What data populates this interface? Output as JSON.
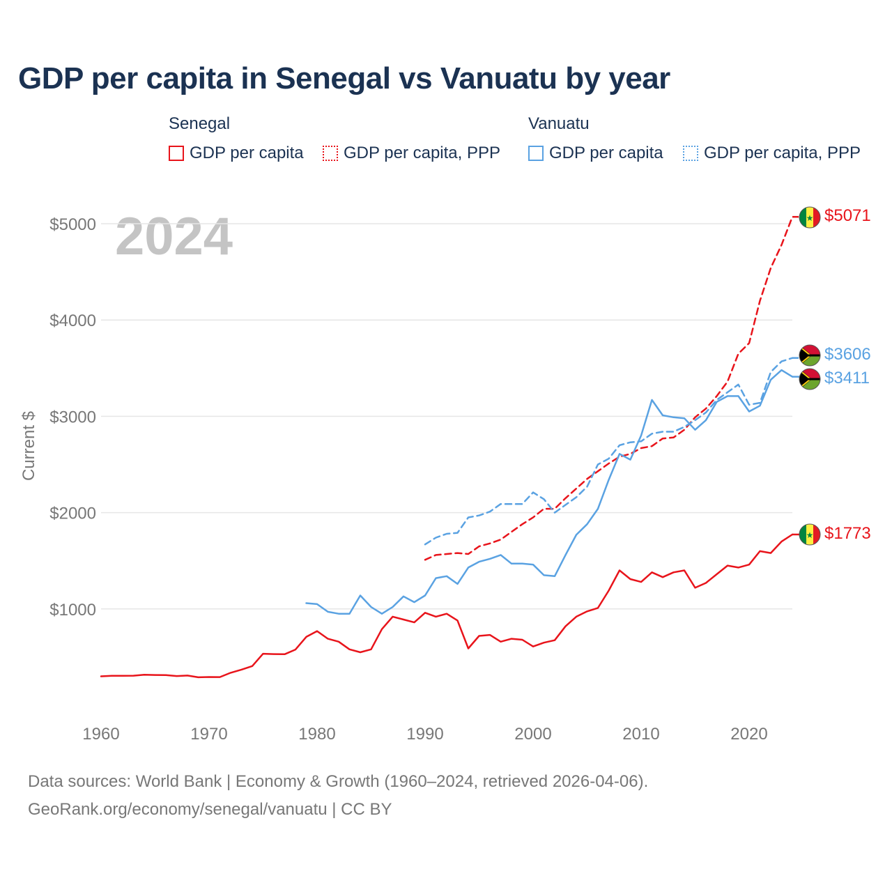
{
  "title": "GDP per capita in Senegal vs Vanuatu by year",
  "legend": {
    "senegal": {
      "name": "Senegal",
      "gdp": "GDP per capita",
      "ppp": "GDP per capita, PPP"
    },
    "vanuatu": {
      "name": "Vanuatu",
      "gdp": "GDP per capita",
      "ppp": "GDP per capita, PPP"
    }
  },
  "year_watermark": "2024",
  "footer": {
    "line1": "Data sources: World Bank | Economy & Growth (1960–2024, retrieved 2026-04-06).",
    "line2": "GeoRank.org/economy/senegal/vanuatu | CC BY"
  },
  "colors": {
    "senegal": "#e8141b",
    "vanuatu": "#5aa2e2",
    "grid": "#e6e6e6"
  },
  "chart_data": {
    "type": "line",
    "title": "GDP per capita in Senegal vs Vanuatu by year",
    "xlabel": "",
    "ylabel": "Current $",
    "xlim": [
      1960,
      2024
    ],
    "ylim": [
      0,
      5200
    ],
    "x_ticks": [
      1960,
      1970,
      1980,
      1990,
      2000,
      2010,
      2020
    ],
    "y_ticks": [
      {
        "value": 1000,
        "label": "$1000"
      },
      {
        "value": 2000,
        "label": "$2000"
      },
      {
        "value": 3000,
        "label": "$3000"
      },
      {
        "value": 4000,
        "label": "$4000"
      },
      {
        "value": 5000,
        "label": "$5000"
      }
    ],
    "series": [
      {
        "name": "Senegal GDP per capita",
        "country": "senegal",
        "style": "solid",
        "end_label": "$1773",
        "x": [
          1960,
          1961,
          1962,
          1963,
          1964,
          1965,
          1966,
          1967,
          1968,
          1969,
          1970,
          1971,
          1972,
          1973,
          1974,
          1975,
          1976,
          1977,
          1978,
          1979,
          1980,
          1981,
          1982,
          1983,
          1984,
          1985,
          1986,
          1987,
          1988,
          1989,
          1990,
          1991,
          1992,
          1993,
          1994,
          1995,
          1996,
          1997,
          1998,
          1999,
          2000,
          2001,
          2002,
          2003,
          2004,
          2005,
          2006,
          2007,
          2008,
          2009,
          2010,
          2011,
          2012,
          2013,
          2014,
          2015,
          2016,
          2017,
          2018,
          2019,
          2020,
          2021,
          2022,
          2023,
          2024
        ],
        "values": [
          300,
          306,
          305,
          307,
          316,
          314,
          313,
          303,
          308,
          290,
          293,
          292,
          337,
          370,
          407,
          535,
          531,
          530,
          578,
          710,
          770,
          690,
          660,
          580,
          550,
          580,
          790,
          920,
          890,
          860,
          960,
          920,
          950,
          880,
          590,
          720,
          730,
          660,
          690,
          680,
          610,
          650,
          675,
          820,
          920,
          975,
          1010,
          1190,
          1400,
          1310,
          1280,
          1380,
          1330,
          1380,
          1400,
          1220,
          1270,
          1360,
          1450,
          1430,
          1460,
          1600,
          1580,
          1700,
          1773
        ]
      },
      {
        "name": "Senegal GDP per capita, PPP",
        "country": "senegal",
        "style": "dashed",
        "end_label": "$5071",
        "x": [
          1990,
          1991,
          1992,
          1993,
          1994,
          1995,
          1996,
          1997,
          1998,
          1999,
          2000,
          2001,
          2002,
          2003,
          2004,
          2005,
          2006,
          2007,
          2008,
          2009,
          2010,
          2011,
          2012,
          2013,
          2014,
          2015,
          2016,
          2017,
          2018,
          2019,
          2020,
          2021,
          2022,
          2023,
          2024
        ],
        "values": [
          1510,
          1560,
          1570,
          1580,
          1570,
          1650,
          1680,
          1720,
          1800,
          1880,
          1950,
          2040,
          2040,
          2150,
          2250,
          2350,
          2430,
          2510,
          2580,
          2610,
          2670,
          2690,
          2770,
          2780,
          2860,
          2990,
          3080,
          3210,
          3360,
          3650,
          3760,
          4200,
          4540,
          4780,
          5071
        ]
      },
      {
        "name": "Vanuatu GDP per capita",
        "country": "vanuatu",
        "style": "solid",
        "end_label": "$3411",
        "x": [
          1979,
          1980,
          1981,
          1982,
          1983,
          1984,
          1985,
          1986,
          1987,
          1988,
          1989,
          1990,
          1991,
          1992,
          1993,
          1994,
          1995,
          1996,
          1997,
          1998,
          1999,
          2000,
          2001,
          2002,
          2003,
          2004,
          2005,
          2006,
          2007,
          2008,
          2009,
          2010,
          2011,
          2012,
          2013,
          2014,
          2015,
          2016,
          2017,
          2018,
          2019,
          2020,
          2021,
          2022,
          2023,
          2024
        ],
        "values": [
          1060,
          1050,
          970,
          950,
          950,
          1140,
          1020,
          950,
          1020,
          1130,
          1070,
          1140,
          1320,
          1340,
          1260,
          1430,
          1490,
          1520,
          1560,
          1470,
          1470,
          1460,
          1350,
          1340,
          1560,
          1770,
          1880,
          2040,
          2340,
          2610,
          2550,
          2800,
          3170,
          3010,
          2990,
          2980,
          2860,
          2960,
          3150,
          3210,
          3210,
          3050,
          3110,
          3380,
          3480,
          3411
        ]
      },
      {
        "name": "Vanuatu GDP per capita, PPP",
        "country": "vanuatu",
        "style": "dashed",
        "end_label": "$3606",
        "x": [
          1990,
          1991,
          1992,
          1993,
          1994,
          1995,
          1996,
          1997,
          1998,
          1999,
          2000,
          2001,
          2002,
          2003,
          2004,
          2005,
          2006,
          2007,
          2008,
          2009,
          2010,
          2011,
          2012,
          2013,
          2014,
          2015,
          2016,
          2017,
          2018,
          2019,
          2020,
          2021,
          2022,
          2023,
          2024
        ],
        "values": [
          1670,
          1740,
          1780,
          1790,
          1950,
          1970,
          2010,
          2090,
          2090,
          2090,
          2210,
          2140,
          2000,
          2080,
          2160,
          2270,
          2500,
          2560,
          2700,
          2730,
          2740,
          2820,
          2840,
          2840,
          2890,
          2960,
          3040,
          3170,
          3250,
          3330,
          3120,
          3140,
          3460,
          3570,
          3606
        ]
      }
    ]
  }
}
